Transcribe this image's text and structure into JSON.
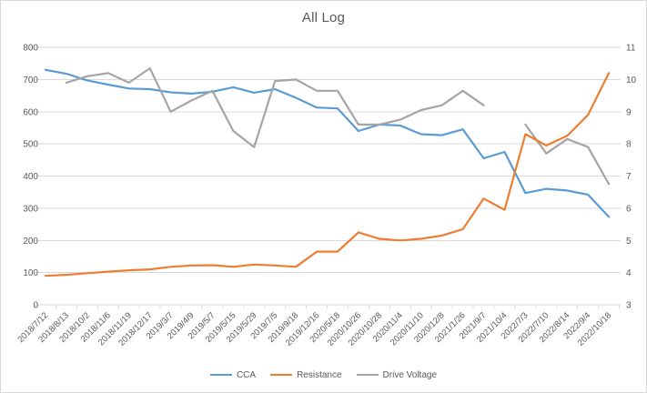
{
  "chart_data": {
    "type": "line",
    "title": "All Log",
    "categories": [
      "2018/7/12",
      "2018/8/13",
      "2018/10/2",
      "2018/11/6",
      "2018/11/19",
      "2018/12/17",
      "2019/3/7",
      "2019/4/9",
      "2019/5/7",
      "2019/5/15",
      "2019/5/29",
      "2019/7/5",
      "2019/9/18",
      "2019/12/16",
      "2020/5/18",
      "2020/10/26",
      "2020/10/28",
      "2020/11/4",
      "2020/11/10",
      "2020/12/8",
      "2021/1/26",
      "2021/9/7",
      "2021/10/4",
      "2022/7/3",
      "2022/7/10",
      "2022/8/14",
      "2022/9/4",
      "2022/10/18"
    ],
    "series": [
      {
        "name": "CCA",
        "color": "#5B9BD5",
        "axis": "left",
        "values": [
          730,
          718,
          697,
          684,
          672,
          670,
          660,
          656,
          662,
          676,
          659,
          670,
          643,
          613,
          610,
          540,
          560,
          557,
          530,
          527,
          545,
          455,
          475,
          347,
          360,
          355,
          342,
          273
        ]
      },
      {
        "name": "Resistance",
        "color": "#ED7D31",
        "axis": "right",
        "values": [
          3.9,
          3.93,
          3.98,
          4.03,
          4.07,
          4.1,
          4.18,
          4.22,
          4.23,
          4.18,
          4.25,
          4.22,
          4.18,
          4.65,
          4.65,
          5.25,
          5.05,
          5.0,
          5.05,
          5.15,
          5.35,
          6.3,
          5.95,
          8.3,
          7.95,
          8.25,
          8.9,
          10.2
        ]
      },
      {
        "name": "Drive Voltage",
        "color": "#A5A5A5",
        "axis": "right",
        "values": [
          null,
          9.9,
          10.1,
          10.2,
          9.9,
          10.35,
          9.0,
          9.35,
          9.65,
          8.4,
          7.9,
          9.95,
          10.0,
          9.65,
          9.65,
          8.6,
          8.6,
          8.75,
          9.05,
          9.2,
          9.65,
          9.2,
          null,
          8.6,
          7.7,
          8.15,
          7.9,
          6.75
        ]
      }
    ],
    "axes": {
      "left": {
        "min": 0,
        "max": 800,
        "ticks": [
          0,
          100,
          200,
          300,
          400,
          500,
          600,
          700,
          800
        ]
      },
      "right": {
        "min": 3,
        "max": 11,
        "ticks": [
          3,
          4,
          5,
          6,
          7,
          8,
          9,
          10,
          11
        ]
      }
    },
    "grid": true,
    "legend_position": "bottom",
    "x_label_rotation_deg": 45,
    "colors": {
      "text": "#595959",
      "grid": "#d9d9d9",
      "axis": "#d9d9d9",
      "border": "#d9d9d9",
      "background": "#ffffff"
    }
  }
}
